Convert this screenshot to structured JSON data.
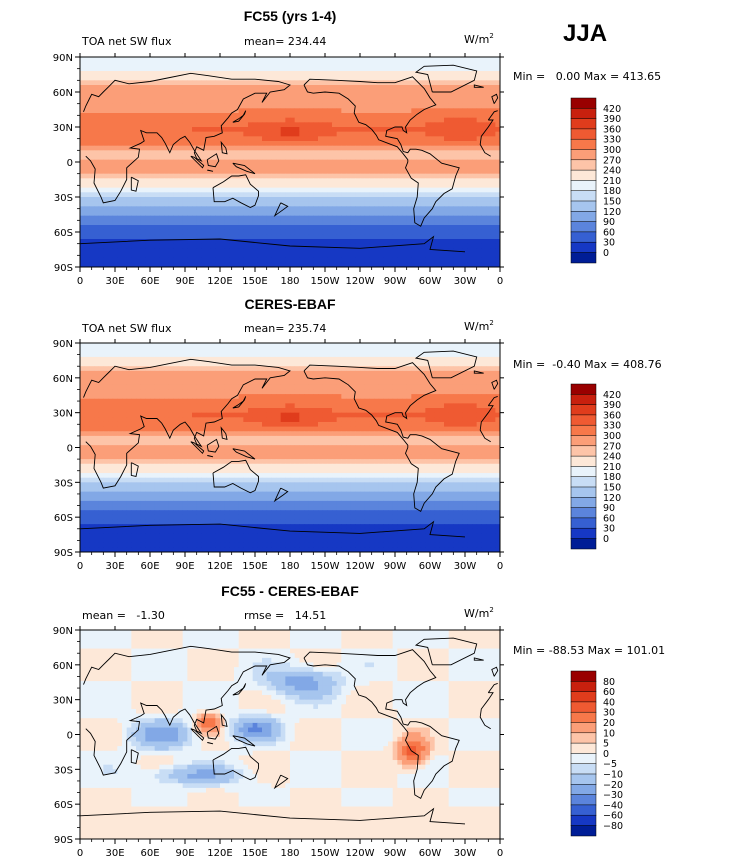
{
  "season": "JJA",
  "units": "W/m",
  "units_exp": "2",
  "x_ticks": [
    "0",
    "30E",
    "60E",
    "90E",
    "120E",
    "150E",
    "180",
    "150W",
    "120W",
    "90W",
    "60W",
    "30W",
    "0"
  ],
  "y_ticks": [
    "90N",
    "60N",
    "30N",
    "0",
    "30S",
    "60S",
    "90S"
  ],
  "chart_data": [
    {
      "type": "heatmap",
      "title": "FC55 (yrs 1-4)",
      "left_label": "TOA net SW flux",
      "center_label": "mean= 234.44",
      "stats": "Min =   0.00 Max = 413.65",
      "mean": 234.44,
      "min": 0.0,
      "max": 413.65,
      "field": "absolute",
      "xlim": [
        0,
        360
      ],
      "ylim": [
        -90,
        90
      ],
      "colorbar_levels": [
        "420",
        "390",
        "360",
        "330",
        "300",
        "270",
        "240",
        "210",
        "180",
        "150",
        "120",
        "90",
        "60",
        "30",
        "0"
      ],
      "colorbar_colors": [
        "#990000",
        "#c8200e",
        "#e03c1c",
        "#ef5a32",
        "#f7784a",
        "#fb9e78",
        "#fdc4a8",
        "#fde8d8",
        "#e9f3fb",
        "#c8ddf5",
        "#a6c5ee",
        "#82a8e6",
        "#5b84dc",
        "#3660d2",
        "#1638c4",
        "#001d96"
      ]
    },
    {
      "type": "heatmap",
      "title": "CERES-EBAF",
      "left_label": "TOA net SW flux",
      "center_label": "mean= 235.74",
      "stats": "Min =  -0.40 Max = 408.76",
      "mean": 235.74,
      "min": -0.4,
      "max": 408.76,
      "field": "absolute",
      "xlim": [
        0,
        360
      ],
      "ylim": [
        -90,
        90
      ],
      "colorbar_levels": [
        "420",
        "390",
        "360",
        "330",
        "300",
        "270",
        "240",
        "210",
        "180",
        "150",
        "120",
        "90",
        "60",
        "30",
        "0"
      ],
      "colorbar_colors": [
        "#990000",
        "#c8200e",
        "#e03c1c",
        "#ef5a32",
        "#f7784a",
        "#fb9e78",
        "#fdc4a8",
        "#fde8d8",
        "#e9f3fb",
        "#c8ddf5",
        "#a6c5ee",
        "#82a8e6",
        "#5b84dc",
        "#3660d2",
        "#1638c4",
        "#001d96"
      ]
    },
    {
      "type": "heatmap",
      "title": "FC55 - CERES-EBAF",
      "left_label": "mean =   -1.30",
      "center_label": "rmse =   14.51",
      "stats": "Min = -88.53 Max = 101.01",
      "mean": -1.3,
      "rmse": 14.51,
      "min": -88.53,
      "max": 101.01,
      "field": "difference",
      "xlim": [
        0,
        360
      ],
      "ylim": [
        -90,
        90
      ],
      "colorbar_levels": [
        "80",
        "60",
        "40",
        "30",
        "20",
        "10",
        "5",
        "0",
        "−5",
        "−10",
        "−20",
        "−30",
        "−40",
        "−60",
        "−80"
      ],
      "colorbar_colors": [
        "#990000",
        "#c8200e",
        "#e03c1c",
        "#ef5a32",
        "#f7784a",
        "#fb9e78",
        "#fdc4a8",
        "#fde8d8",
        "#e9f3fb",
        "#c8ddf5",
        "#a6c5ee",
        "#82a8e6",
        "#5b84dc",
        "#3660d2",
        "#1638c4",
        "#001d96"
      ]
    }
  ]
}
